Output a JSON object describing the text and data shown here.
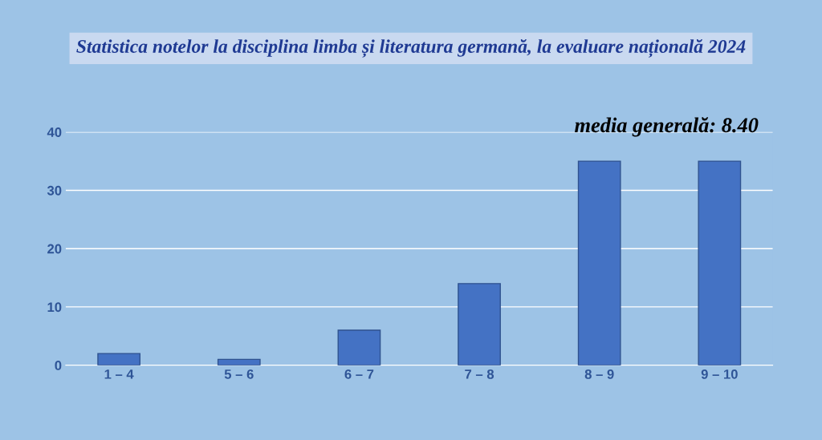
{
  "chart_data": {
    "type": "bar",
    "title": "Statistica notelor la disciplina limba și literatura germană, la evaluare națională 2024",
    "categories": [
      "1 – 4",
      "5 – 6",
      "6 – 7",
      "7 – 8",
      "8 – 9",
      "9 – 10"
    ],
    "values": [
      2,
      1,
      6,
      14,
      35,
      35
    ],
    "color": "#4472c4",
    "ylim": [
      0,
      40
    ],
    "yticks": [
      0,
      10,
      20,
      30,
      40
    ],
    "grid": "y",
    "annotations": [
      "media generală: 8.40"
    ]
  }
}
